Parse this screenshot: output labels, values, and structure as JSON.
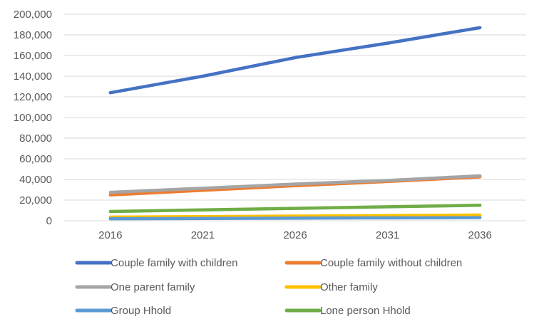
{
  "chart_data": {
    "type": "line",
    "title": "",
    "xlabel": "",
    "ylabel": "",
    "categories": [
      "2016",
      "2021",
      "2026",
      "2031",
      "2036"
    ],
    "ylim": [
      0,
      200000
    ],
    "y_ticks": [
      "0",
      "20,000",
      "40,000",
      "60,000",
      "80,000",
      "100,000",
      "120,000",
      "140,000",
      "160,000",
      "180,000",
      "200,000"
    ],
    "y_tick_values": [
      0,
      20000,
      40000,
      60000,
      80000,
      100000,
      120000,
      140000,
      160000,
      180000,
      200000
    ],
    "grid": true,
    "legend_position": "bottom",
    "series": [
      {
        "name": "Couple family with children",
        "color": "#4472C4",
        "values": [
          124000,
          140000,
          158000,
          172000,
          187000
        ]
      },
      {
        "name": "Couple family without children",
        "color": "#ED7D31",
        "values": [
          25000,
          29500,
          34000,
          38000,
          42500
        ]
      },
      {
        "name": "One parent family",
        "color": "#A5A5A5",
        "values": [
          27500,
          31500,
          35500,
          39000,
          43500
        ]
      },
      {
        "name": "Other family",
        "color": "#FFC000",
        "values": [
          3500,
          4000,
          4500,
          5000,
          5500
        ]
      },
      {
        "name": "Group Hhold",
        "color": "#5B9BD5",
        "values": [
          2000,
          2200,
          2500,
          2800,
          3000
        ]
      },
      {
        "name": "Lone person Hhold",
        "color": "#70AD47",
        "values": [
          9000,
          10500,
          12000,
          13500,
          15000
        ]
      }
    ]
  }
}
